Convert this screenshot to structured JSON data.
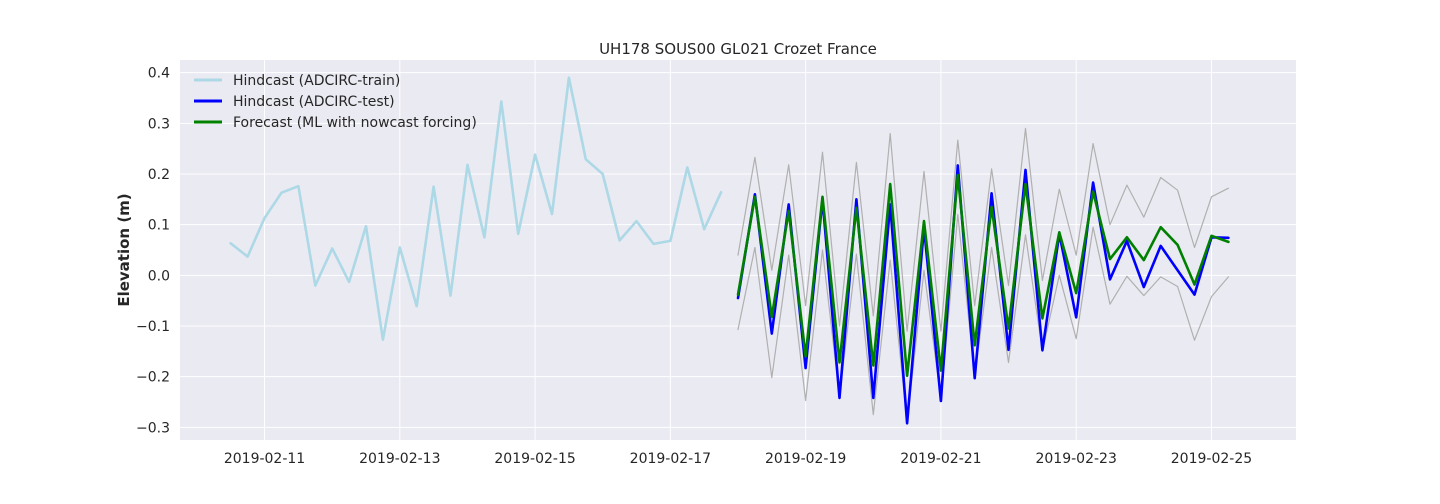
{
  "chart_data": {
    "type": "line",
    "title": "UH178 SOUS00 GL021 Crozet France",
    "xlabel": "",
    "ylabel": "Elevation (m)",
    "x_axis_type": "date",
    "xlim": [
      "2019-02-09T18:00",
      "2019-02-26T06:00"
    ],
    "ylim": [
      -0.325,
      0.425
    ],
    "grid": true,
    "legend_position": "top-left",
    "x_ticks": [
      "2019-02-11",
      "2019-02-13",
      "2019-02-15",
      "2019-02-17",
      "2019-02-19",
      "2019-02-21",
      "2019-02-23",
      "2019-02-25"
    ],
    "y_ticks": [
      "-0.3",
      "-0.2",
      "-0.1",
      "0.0",
      "0.1",
      "0.2",
      "0.3",
      "0.4"
    ],
    "series": [
      {
        "name": "Hindcast (ADCIRC-train)",
        "color": "#add8e6",
        "in_legend": true,
        "x": [
          "2019-02-10T12:00",
          "2019-02-10T18:00",
          "2019-02-11T00:00",
          "2019-02-11T06:00",
          "2019-02-11T12:00",
          "2019-02-11T18:00",
          "2019-02-12T00:00",
          "2019-02-12T06:00",
          "2019-02-12T12:00",
          "2019-02-12T18:00",
          "2019-02-13T00:00",
          "2019-02-13T06:00",
          "2019-02-13T12:00",
          "2019-02-13T18:00",
          "2019-02-14T00:00",
          "2019-02-14T06:00",
          "2019-02-14T12:00",
          "2019-02-14T18:00",
          "2019-02-15T00:00",
          "2019-02-15T06:00",
          "2019-02-15T12:00",
          "2019-02-15T18:00",
          "2019-02-16T00:00",
          "2019-02-16T06:00",
          "2019-02-16T12:00",
          "2019-02-16T18:00",
          "2019-02-17T00:00",
          "2019-02-17T06:00",
          "2019-02-17T12:00",
          "2019-02-17T18:00"
        ],
        "y": [
          0.063,
          0.037,
          0.113,
          0.163,
          0.176,
          -0.02,
          0.053,
          -0.013,
          0.097,
          -0.127,
          0.055,
          -0.061,
          0.175,
          -0.04,
          0.218,
          0.075,
          0.343,
          0.082,
          0.238,
          0.121,
          0.39,
          0.229,
          0.2,
          0.069,
          0.107,
          0.062,
          0.068,
          0.213,
          0.091,
          0.164
        ]
      },
      {
        "name": "Hindcast (ADCIRC-test)",
        "color": "#0000ff",
        "in_legend": true,
        "x": [
          "2019-02-18T00:00",
          "2019-02-18T06:00",
          "2019-02-18T12:00",
          "2019-02-18T18:00",
          "2019-02-19T00:00",
          "2019-02-19T06:00",
          "2019-02-19T12:00",
          "2019-02-19T18:00",
          "2019-02-20T00:00",
          "2019-02-20T06:00",
          "2019-02-20T12:00",
          "2019-02-20T18:00",
          "2019-02-21T00:00",
          "2019-02-21T06:00",
          "2019-02-21T12:00",
          "2019-02-21T18:00",
          "2019-02-22T00:00",
          "2019-02-22T06:00",
          "2019-02-22T12:00",
          "2019-02-22T18:00",
          "2019-02-23T00:00",
          "2019-02-23T06:00",
          "2019-02-23T12:00",
          "2019-02-23T18:00",
          "2019-02-24T00:00",
          "2019-02-24T06:00",
          "2019-02-24T12:00",
          "2019-02-24T18:00",
          "2019-02-25T00:00",
          "2019-02-25T06:00"
        ],
        "y": [
          -0.045,
          0.16,
          -0.115,
          0.14,
          -0.183,
          0.15,
          -0.242,
          0.15,
          -0.242,
          0.14,
          -0.292,
          0.095,
          -0.248,
          0.217,
          -0.203,
          0.162,
          -0.147,
          0.208,
          -0.148,
          0.082,
          -0.083,
          0.183,
          -0.008,
          0.068,
          -0.023,
          0.058,
          0.01,
          -0.038,
          0.075,
          0.074
        ]
      },
      {
        "name": "Forecast (ML with nowcast forcing)",
        "color": "#008000",
        "in_legend": true,
        "x": [
          "2019-02-18T00:00",
          "2019-02-18T06:00",
          "2019-02-18T12:00",
          "2019-02-18T18:00",
          "2019-02-19T00:00",
          "2019-02-19T06:00",
          "2019-02-19T12:00",
          "2019-02-19T18:00",
          "2019-02-20T00:00",
          "2019-02-20T06:00",
          "2019-02-20T12:00",
          "2019-02-20T18:00",
          "2019-02-21T00:00",
          "2019-02-21T06:00",
          "2019-02-21T12:00",
          "2019-02-21T18:00",
          "2019-02-22T00:00",
          "2019-02-22T06:00",
          "2019-02-22T12:00",
          "2019-02-22T18:00",
          "2019-02-23T00:00",
          "2019-02-23T06:00",
          "2019-02-23T12:00",
          "2019-02-23T18:00",
          "2019-02-24T00:00",
          "2019-02-24T06:00",
          "2019-02-24T12:00",
          "2019-02-24T18:00",
          "2019-02-25T00:00",
          "2019-02-25T06:00"
        ],
        "y": [
          -0.038,
          0.155,
          -0.082,
          0.127,
          -0.16,
          0.155,
          -0.172,
          0.133,
          -0.178,
          0.18,
          -0.198,
          0.107,
          -0.188,
          0.198,
          -0.138,
          0.135,
          -0.105,
          0.18,
          -0.085,
          0.085,
          -0.035,
          0.165,
          0.032,
          0.075,
          0.03,
          0.095,
          0.06,
          -0.018,
          0.078,
          0.066
        ]
      },
      {
        "name": "",
        "color": "#b0b0b0",
        "in_legend": false,
        "x": [
          "2019-02-18T00:00",
          "2019-02-18T06:00",
          "2019-02-18T12:00",
          "2019-02-18T18:00",
          "2019-02-19T00:00",
          "2019-02-19T06:00",
          "2019-02-19T12:00",
          "2019-02-19T18:00",
          "2019-02-20T00:00",
          "2019-02-20T06:00",
          "2019-02-20T12:00",
          "2019-02-20T18:00",
          "2019-02-21T00:00",
          "2019-02-21T06:00",
          "2019-02-21T12:00",
          "2019-02-21T18:00",
          "2019-02-22T00:00",
          "2019-02-22T06:00",
          "2019-02-22T12:00",
          "2019-02-22T18:00",
          "2019-02-23T00:00",
          "2019-02-23T06:00",
          "2019-02-23T12:00",
          "2019-02-23T18:00",
          "2019-02-24T00:00",
          "2019-02-24T06:00",
          "2019-02-24T12:00",
          "2019-02-24T18:00",
          "2019-02-25T00:00",
          "2019-02-25T06:00"
        ],
        "y": [
          0.04,
          0.233,
          0.01,
          0.218,
          -0.06,
          0.243,
          -0.1,
          0.223,
          -0.08,
          0.28,
          -0.11,
          0.205,
          -0.11,
          0.267,
          -0.06,
          0.21,
          -0.02,
          0.29,
          -0.01,
          0.17,
          0.04,
          0.26,
          0.1,
          0.178,
          0.115,
          0.193,
          0.168,
          0.055,
          0.155,
          0.172
        ]
      },
      {
        "name": "",
        "color": "#b0b0b0",
        "in_legend": false,
        "x": [
          "2019-02-18T00:00",
          "2019-02-18T06:00",
          "2019-02-18T12:00",
          "2019-02-18T18:00",
          "2019-02-19T00:00",
          "2019-02-19T06:00",
          "2019-02-19T12:00",
          "2019-02-19T18:00",
          "2019-02-20T00:00",
          "2019-02-20T06:00",
          "2019-02-20T12:00",
          "2019-02-20T18:00",
          "2019-02-21T00:00",
          "2019-02-21T06:00",
          "2019-02-21T12:00",
          "2019-02-21T18:00",
          "2019-02-22T00:00",
          "2019-02-22T06:00",
          "2019-02-22T12:00",
          "2019-02-22T18:00",
          "2019-02-23T00:00",
          "2019-02-23T06:00",
          "2019-02-23T12:00",
          "2019-02-23T18:00",
          "2019-02-24T00:00",
          "2019-02-24T06:00",
          "2019-02-24T12:00",
          "2019-02-24T18:00",
          "2019-02-25T00:00",
          "2019-02-25T06:00"
        ],
        "y": [
          -0.107,
          0.055,
          -0.202,
          0.04,
          -0.247,
          0.05,
          -0.24,
          0.042,
          -0.275,
          0.03,
          -0.29,
          0.01,
          -0.245,
          0.12,
          -0.2,
          0.055,
          -0.172,
          0.08,
          -0.15,
          0.0,
          -0.125,
          0.095,
          -0.057,
          -0.002,
          -0.04,
          -0.003,
          -0.022,
          -0.128,
          -0.042,
          -0.003
        ]
      }
    ]
  }
}
